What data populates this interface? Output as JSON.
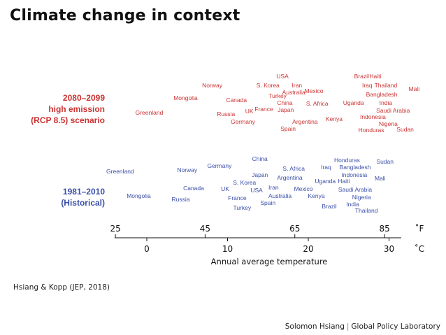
{
  "title": "Climate change in context",
  "row_labels": {
    "future": [
      "2080–2099",
      "high emission",
      "(RCP 8.5) scenario"
    ],
    "historical": [
      "1981–2010",
      "(Historical)"
    ]
  },
  "citation": "Hsiang & Kopp (JEP, 2018)",
  "footer": {
    "author": "Solomon Hsiang",
    "separator": "|",
    "org": "Global Policy Laboratory"
  },
  "colors": {
    "future": "#cc3333",
    "historical": "#3b4fa8",
    "axis": "#111111"
  },
  "chart_data": {
    "type": "scatter",
    "xlabel": "Annual average temperature",
    "xlim_c": [
      -4,
      33
    ],
    "axis_f": {
      "unit": "˚F",
      "ticks": [
        25,
        45,
        65,
        85
      ]
    },
    "axis_c": {
      "unit": "˚C",
      "ticks": [
        0,
        10,
        20,
        30
      ]
    },
    "series": [
      {
        "name": "2080–2099 high emission (RCP 8.5) scenario",
        "color": "#cc3333",
        "points": [
          {
            "label": "USA",
            "x": 16.8
          },
          {
            "label": "Brazil",
            "x": 26.6
          },
          {
            "label": "Haiti",
            "x": 28.3
          },
          {
            "label": "Norway",
            "x": 8.1
          },
          {
            "label": "S. Korea",
            "x": 15.0
          },
          {
            "label": "Iran",
            "x": 18.6
          },
          {
            "label": "Iraq",
            "x": 27.3
          },
          {
            "label": "Thailand",
            "x": 29.6
          },
          {
            "label": "Mali",
            "x": 33.1
          },
          {
            "label": "Mexico",
            "x": 20.7
          },
          {
            "label": "Australia",
            "x": 18.2
          },
          {
            "label": "Turkey",
            "x": 16.2
          },
          {
            "label": "Bangladesh",
            "x": 29.1
          },
          {
            "label": "Mongolia",
            "x": 4.8
          },
          {
            "label": "Canada",
            "x": 11.1
          },
          {
            "label": "China",
            "x": 17.1
          },
          {
            "label": "S. Africa",
            "x": 21.1
          },
          {
            "label": "Uganda",
            "x": 25.6
          },
          {
            "label": "India",
            "x": 29.6
          },
          {
            "label": "France",
            "x": 14.5
          },
          {
            "label": "Japan",
            "x": 17.2
          },
          {
            "label": "Saudi Arabia",
            "x": 30.5
          },
          {
            "label": "Greenland",
            "x": 0.3
          },
          {
            "label": "Russia",
            "x": 9.8
          },
          {
            "label": "UK",
            "x": 12.7
          },
          {
            "label": "Indonesia",
            "x": 28.0
          },
          {
            "label": "Kenya",
            "x": 23.2
          },
          {
            "label": "Germany",
            "x": 11.9
          },
          {
            "label": "Argentina",
            "x": 19.6
          },
          {
            "label": "Nigeria",
            "x": 29.9
          },
          {
            "label": "Spain",
            "x": 17.5
          },
          {
            "label": "Honduras",
            "x": 27.8
          },
          {
            "label": "Sudan",
            "x": 32.0
          }
        ]
      },
      {
        "name": "1981–2010 (Historical)",
        "color": "#3b4fa8",
        "points": [
          {
            "label": "China",
            "x": 14.0
          },
          {
            "label": "Germany",
            "x": 9.0
          },
          {
            "label": "Honduras",
            "x": 24.8
          },
          {
            "label": "Sudan",
            "x": 29.5
          },
          {
            "label": "S. Africa",
            "x": 18.2
          },
          {
            "label": "Iraq",
            "x": 22.2
          },
          {
            "label": "Bangladesh",
            "x": 25.8
          },
          {
            "label": "Greenland",
            "x": -3.3
          },
          {
            "label": "Norway",
            "x": 5.0
          },
          {
            "label": "Japan",
            "x": 14.0
          },
          {
            "label": "Argentina",
            "x": 17.7
          },
          {
            "label": "Indonesia",
            "x": 25.7
          },
          {
            "label": "Uganda",
            "x": 22.1
          },
          {
            "label": "Haiti",
            "x": 24.4
          },
          {
            "label": "Mali",
            "x": 28.9
          },
          {
            "label": "S. Korea",
            "x": 12.1
          },
          {
            "label": "Canada",
            "x": 5.8
          },
          {
            "label": "UK",
            "x": 9.7
          },
          {
            "label": "Iran",
            "x": 15.7
          },
          {
            "label": "Mexico",
            "x": 19.4
          },
          {
            "label": "USA",
            "x": 13.6
          },
          {
            "label": "Saudi Arabia",
            "x": 25.8
          },
          {
            "label": "Mongolia",
            "x": -1.0
          },
          {
            "label": "Australia",
            "x": 16.5
          },
          {
            "label": "Kenya",
            "x": 21.0
          },
          {
            "label": "Nigeria",
            "x": 26.6
          },
          {
            "label": "Russia",
            "x": 4.2
          },
          {
            "label": "France",
            "x": 11.2
          },
          {
            "label": "Spain",
            "x": 15.0
          },
          {
            "label": "India",
            "x": 25.5
          },
          {
            "label": "Turkey",
            "x": 11.8
          },
          {
            "label": "Brazil",
            "x": 22.6
          },
          {
            "label": "Thailand",
            "x": 27.2
          }
        ]
      }
    ]
  }
}
